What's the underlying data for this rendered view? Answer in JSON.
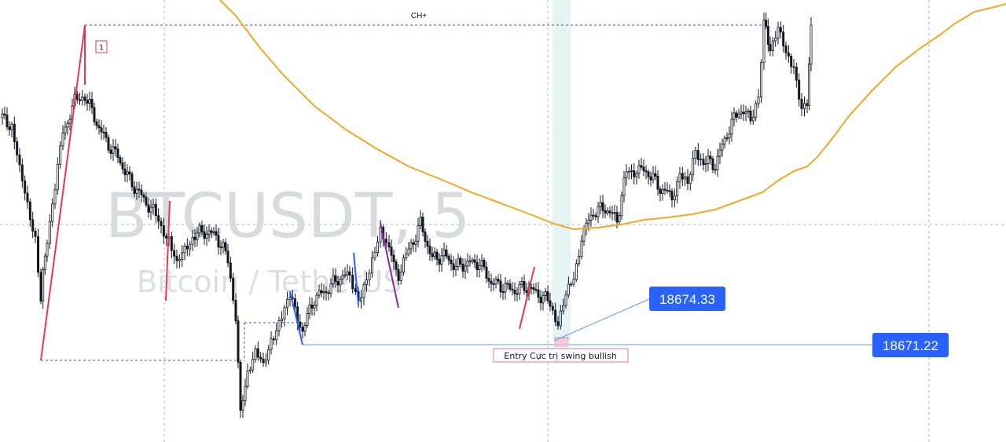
{
  "watermark": {
    "symbol": "BTCUSDT, 5",
    "description": "Bitcoin / TetherUS"
  },
  "annotations": {
    "choch_label": "CH+",
    "swing_number": "1",
    "entry_label": "Entry Cực trị swing bullish"
  },
  "price_labels": {
    "callout": "18674.33",
    "level": "18671.22"
  },
  "colors": {
    "up": "#26a69a",
    "down": "#131722",
    "candle": "#131722",
    "ma_line": "#f5a623",
    "zigzag_red": "#e53950",
    "zigzag_blue": "#2962ff",
    "zigzag_purple": "#8e24aa",
    "level_line": "#5b9cf0",
    "label_bg": "#2962ff",
    "highlight_band": "#b2dfdb",
    "entry_box": "#f8bbd0"
  },
  "chart_data": {
    "type": "candlestick",
    "symbol": "BTCUSDT",
    "timeframe": "5",
    "prices": {
      "callout": 18674.33,
      "level": 18671.22
    },
    "grid": "dashed crosshair lines"
  }
}
